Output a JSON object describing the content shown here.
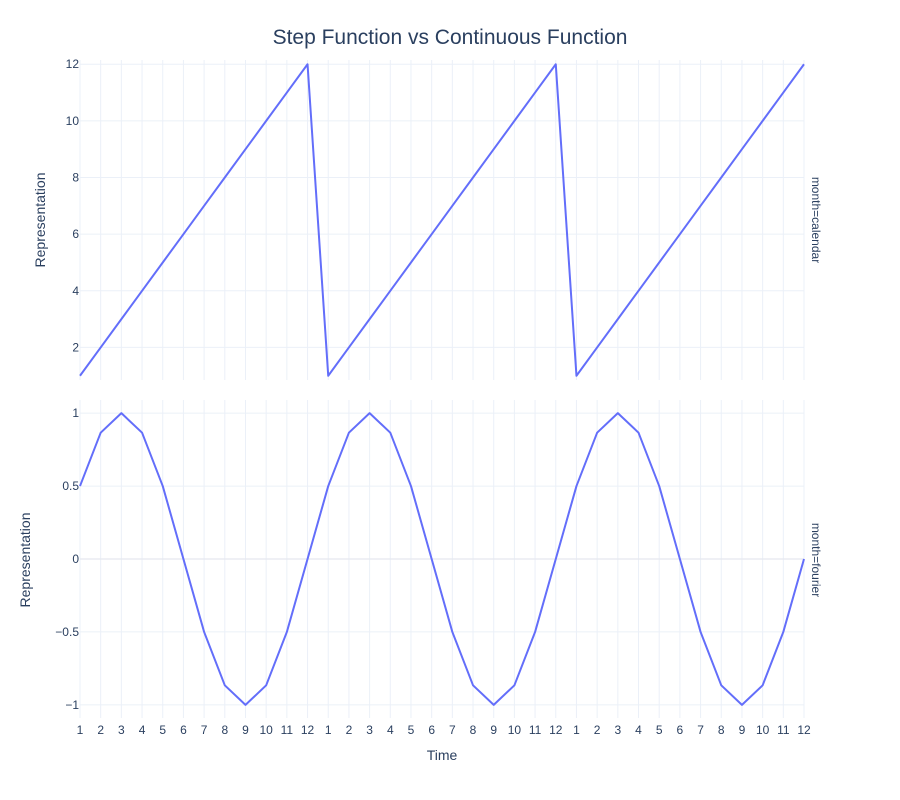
{
  "chart_data": {
    "type": "line",
    "title": "Step Function vs Continuous Function",
    "xlabel": "Time",
    "x_tick_labels": [
      "1",
      "2",
      "3",
      "4",
      "5",
      "6",
      "7",
      "8",
      "9",
      "10",
      "11",
      "12",
      "1",
      "2",
      "3",
      "4",
      "5",
      "6",
      "7",
      "8",
      "9",
      "10",
      "11",
      "12",
      "1",
      "2",
      "3",
      "4",
      "5",
      "6",
      "7",
      "8",
      "9",
      "10",
      "11",
      "12"
    ],
    "colors": {
      "line": "#636efa",
      "grid": "#ebf0f8",
      "text": "#2a3f5f"
    },
    "grid": true,
    "panels": [
      {
        "facet_label": "month=calendar",
        "ylabel": "Representation",
        "ylim": [
          0.85,
          12.15
        ],
        "yticks": [
          2,
          4,
          6,
          8,
          10,
          12
        ],
        "ytick_labels": [
          "2",
          "4",
          "6",
          "8",
          "10",
          "12"
        ],
        "values": [
          1,
          2,
          3,
          4,
          5,
          6,
          7,
          8,
          9,
          10,
          11,
          12,
          1,
          2,
          3,
          4,
          5,
          6,
          7,
          8,
          9,
          10,
          11,
          12,
          1,
          2,
          3,
          4,
          5,
          6,
          7,
          8,
          9,
          10,
          11,
          12
        ]
      },
      {
        "facet_label": "month=fourier",
        "ylabel": "Representation",
        "ylim": [
          -1.09,
          1.09
        ],
        "yticks": [
          1,
          0.5,
          0,
          -0.5,
          -1
        ],
        "ytick_labels": [
          "1",
          "0.5",
          "0",
          "−0.5",
          "−1"
        ],
        "values": [
          0.5,
          0.866,
          1,
          0.866,
          0.5,
          0,
          -0.5,
          -0.866,
          -1,
          -0.866,
          -0.5,
          0,
          0.5,
          0.866,
          1,
          0.866,
          0.5,
          0,
          -0.5,
          -0.866,
          -1,
          -0.866,
          -0.5,
          0,
          0.5,
          0.866,
          1,
          0.866,
          0.5,
          0,
          -0.5,
          -0.866,
          -1,
          -0.866,
          -0.5,
          0
        ]
      }
    ]
  }
}
